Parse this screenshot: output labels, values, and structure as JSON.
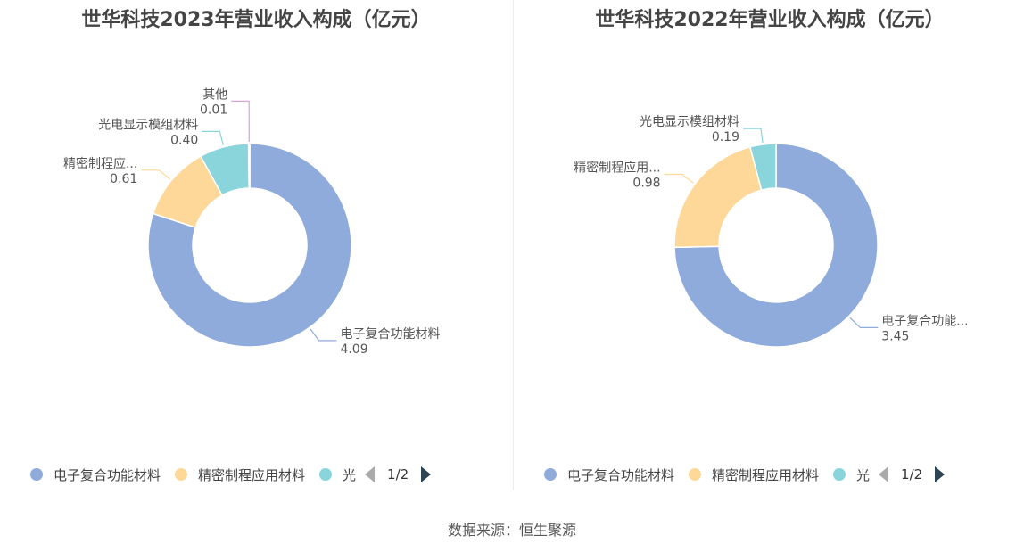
{
  "colors": [
    "#8eabdb",
    "#fed898",
    "#8ad4dc",
    "#d5a4d6"
  ],
  "source": "数据来源：恒生聚源",
  "chart_data": [
    {
      "type": "pie",
      "title": "世华科技2023年营业收入构成（亿元）",
      "slices": [
        {
          "name": "电子复合功能材料",
          "value": 4.09,
          "label": "电子复合功能材料",
          "value_label": "4.09"
        },
        {
          "name": "精密制程应用材料",
          "value": 0.61,
          "label": "精密制程应...",
          "value_label": "0.61"
        },
        {
          "name": "光电显示模组材料",
          "value": 0.4,
          "label": "光电显示模组材料",
          "value_label": "0.40"
        },
        {
          "name": "其他",
          "value": 0.01,
          "label": "其他",
          "value_label": "0.01"
        }
      ],
      "legend": {
        "items": [
          "电子复合功能材料",
          "精密制程应用材料",
          "光"
        ],
        "page": "1/2"
      }
    },
    {
      "type": "pie",
      "title": "世华科技2022年营业收入构成（亿元）",
      "slices": [
        {
          "name": "电子复合功能材料",
          "value": 3.45,
          "label": "电子复合功能...",
          "value_label": "3.45"
        },
        {
          "name": "精密制程应用材料",
          "value": 0.98,
          "label": "精密制程应用...",
          "value_label": "0.98"
        },
        {
          "name": "光电显示模组材料",
          "value": 0.19,
          "label": "光电显示模组材料",
          "value_label": "0.19"
        }
      ],
      "legend": {
        "items": [
          "电子复合功能材料",
          "精密制程应用材料",
          "光"
        ],
        "page": "1/2"
      }
    }
  ]
}
